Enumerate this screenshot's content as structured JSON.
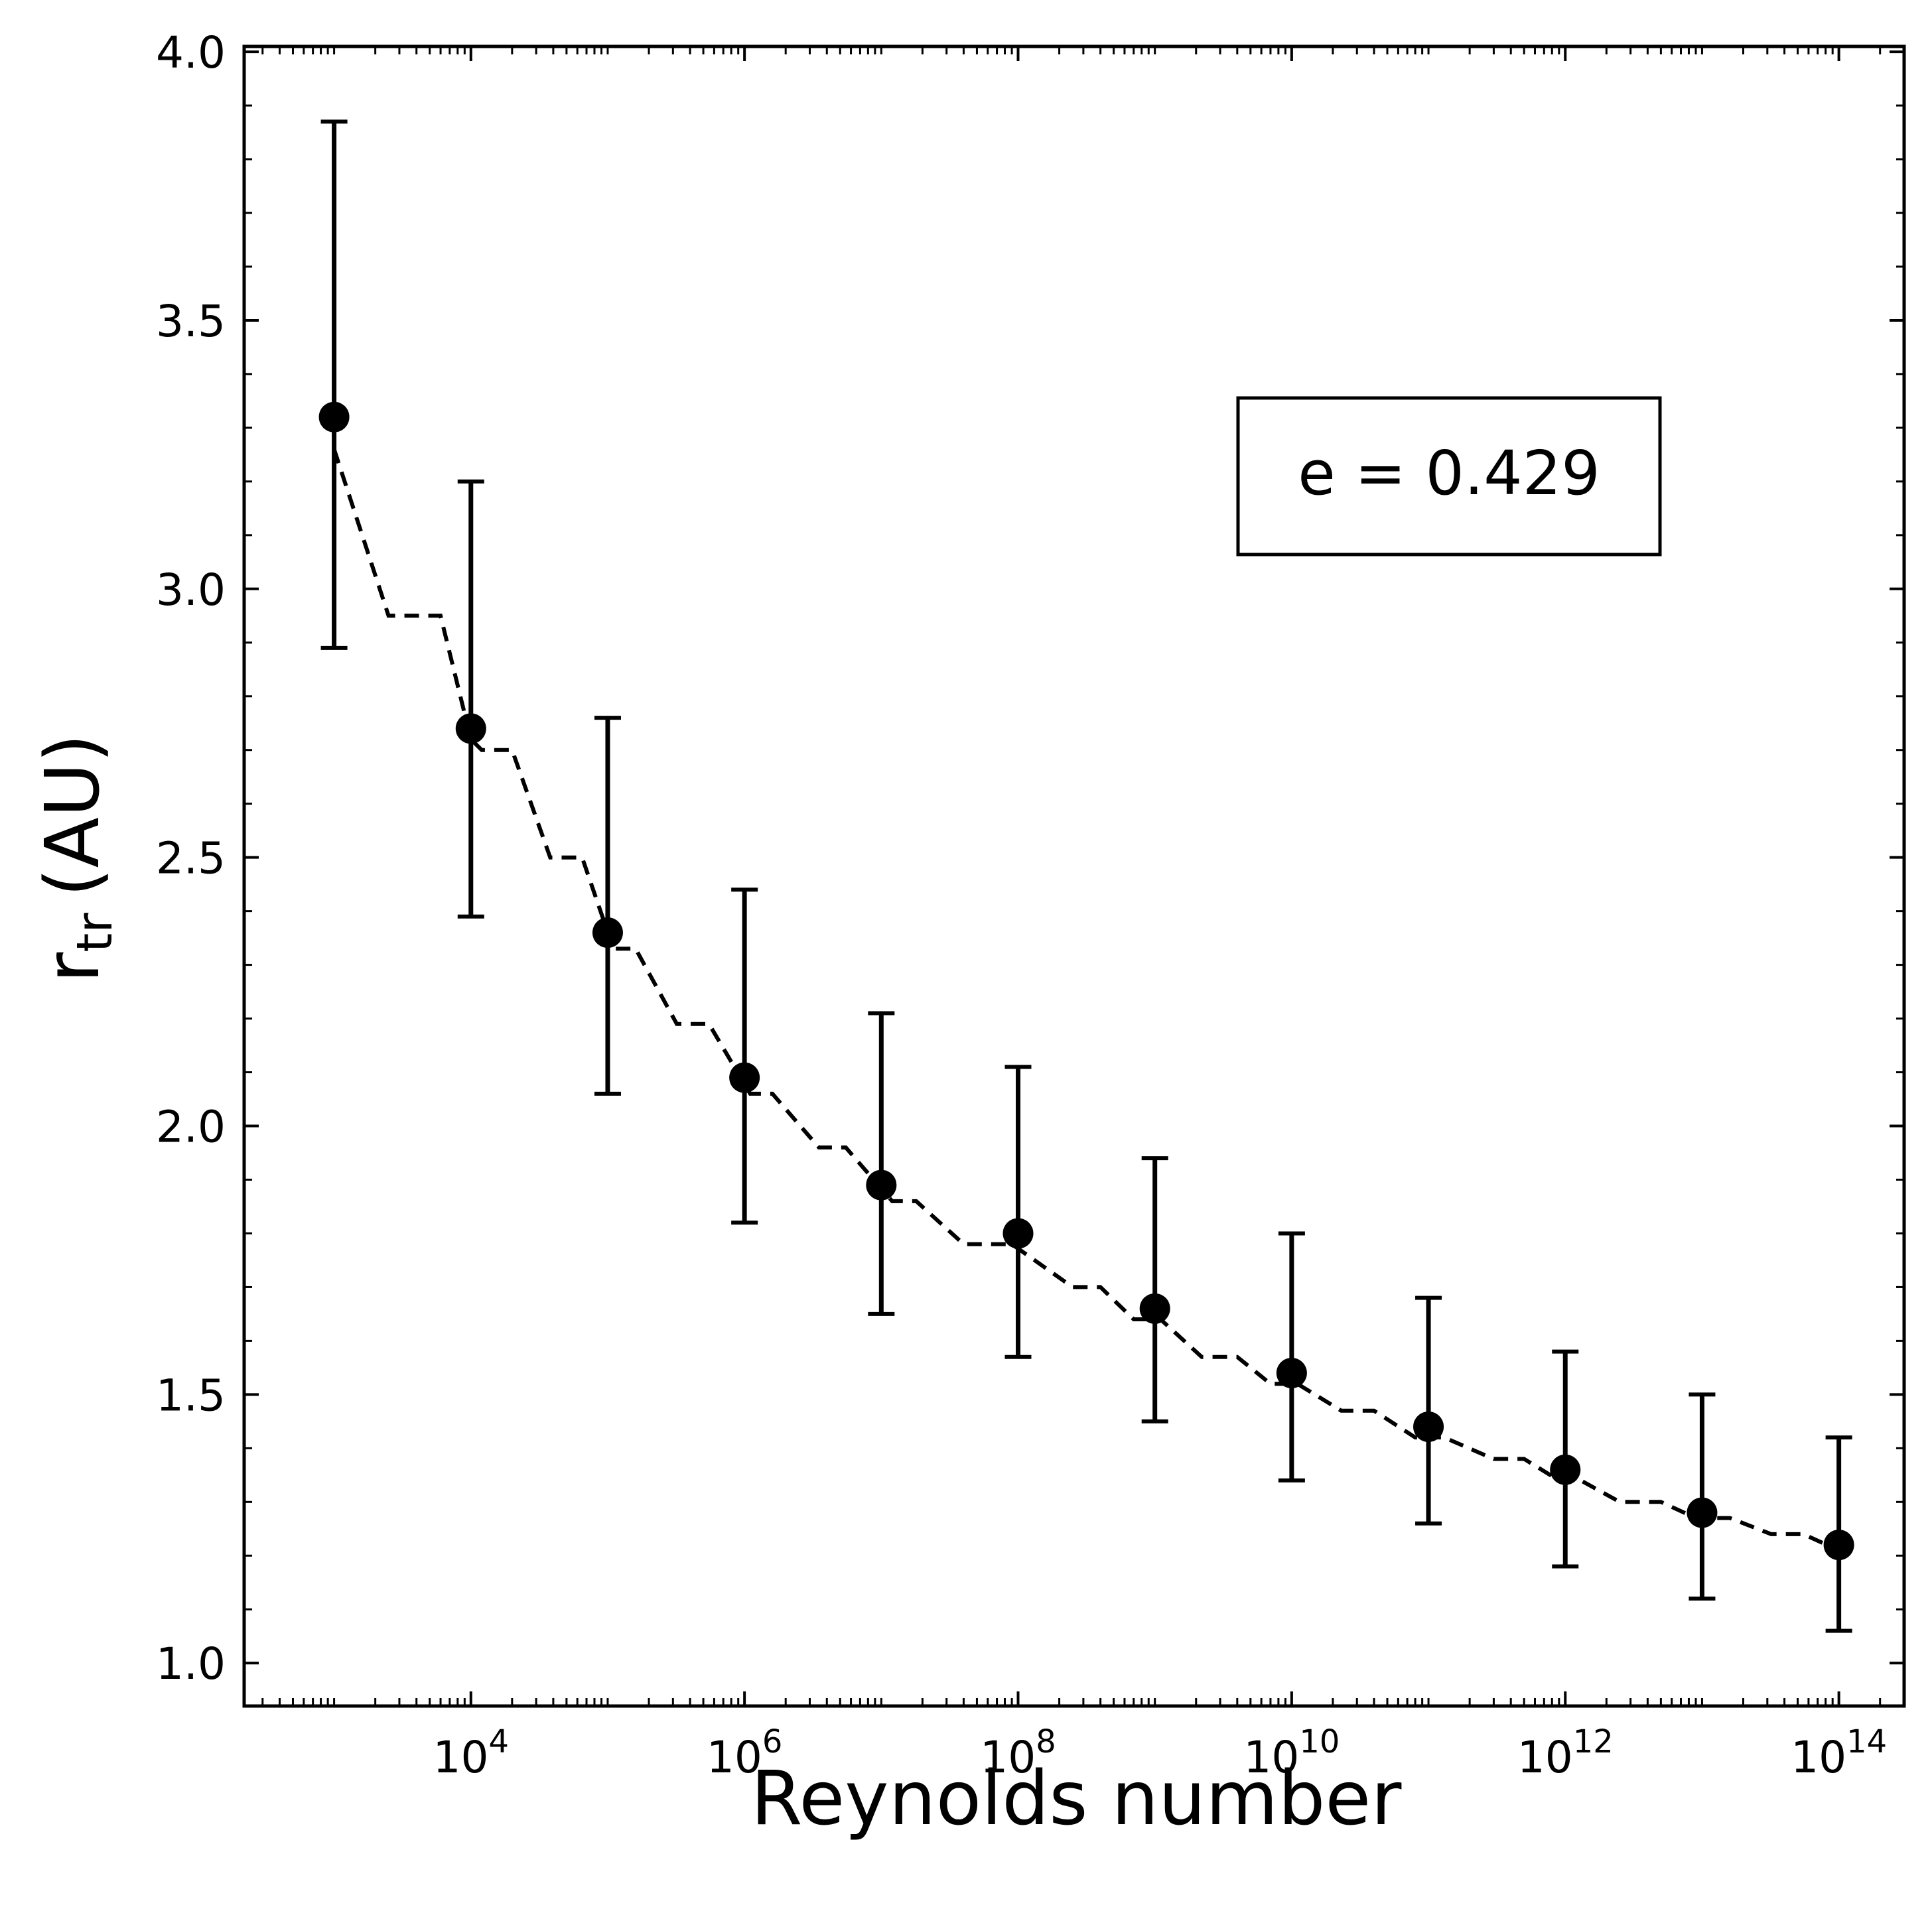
{
  "chart_data": {
    "type": "scatter",
    "title": "",
    "xlabel": "Reynolds number",
    "ylabel": {
      "main": "r",
      "sub": "tr",
      "unit": "(AU)"
    },
    "xscale": "log",
    "xlim": [
      220,
      300000000000000.0
    ],
    "ylim": [
      0.92,
      4.01
    ],
    "x_ticks": [
      {
        "value": 10000.0,
        "base": "10",
        "exp": "4"
      },
      {
        "value": 1000000.0,
        "base": "10",
        "exp": "6"
      },
      {
        "value": 100000000.0,
        "base": "10",
        "exp": "8"
      },
      {
        "value": 10000000000.0,
        "base": "10",
        "exp": "10"
      },
      {
        "value": 1000000000000.0,
        "base": "10",
        "exp": "12"
      },
      {
        "value": 100000000000000.0,
        "base": "10",
        "exp": "14"
      }
    ],
    "y_ticks": [
      {
        "value": 1.0,
        "label": "1.0"
      },
      {
        "value": 1.5,
        "label": "1.5"
      },
      {
        "value": 2.0,
        "label": "2.0"
      },
      {
        "value": 2.5,
        "label": "2.5"
      },
      {
        "value": 3.0,
        "label": "3.0"
      },
      {
        "value": 3.5,
        "label": "3.5"
      },
      {
        "value": 4.0,
        "label": "4.0"
      }
    ],
    "grid": false,
    "series": [
      {
        "marker": "circle",
        "color": "#000000",
        "points": [
          {
            "x": 1000.0,
            "y": 3.32,
            "ylow": 2.89,
            "yhigh": 3.87
          },
          {
            "x": 10000.0,
            "y": 2.74,
            "ylow": 2.39,
            "yhigh": 3.2
          },
          {
            "x": 100000.0,
            "y": 2.36,
            "ylow": 2.06,
            "yhigh": 2.76
          },
          {
            "x": 1000000.0,
            "y": 2.09,
            "ylow": 1.82,
            "yhigh": 2.44
          },
          {
            "x": 10000000.0,
            "y": 1.89,
            "ylow": 1.65,
            "yhigh": 2.21
          },
          {
            "x": 100000000.0,
            "y": 1.8,
            "ylow": 1.57,
            "yhigh": 2.11
          },
          {
            "x": 1000000000.0,
            "y": 1.66,
            "ylow": 1.45,
            "yhigh": 1.94
          },
          {
            "x": 10000000000.0,
            "y": 1.54,
            "ylow": 1.34,
            "yhigh": 1.8
          },
          {
            "x": 100000000000.0,
            "y": 1.44,
            "ylow": 1.26,
            "yhigh": 1.68
          },
          {
            "x": 1000000000000.0,
            "y": 1.36,
            "ylow": 1.18,
            "yhigh": 1.58
          },
          {
            "x": 10000000000000.0,
            "y": 1.28,
            "ylow": 1.12,
            "yhigh": 1.5
          },
          {
            "x": 100000000000000.0,
            "y": 1.22,
            "ylow": 1.06,
            "yhigh": 1.42
          }
        ]
      },
      {
        "type": "line",
        "style": "dashed",
        "color": "#000000",
        "points": [
          [
            1000.0,
            3.26
          ],
          [
            2500.0,
            2.95
          ],
          [
            6000.0,
            2.95
          ],
          [
            10000.0,
            2.72
          ],
          [
            12000.0,
            2.7
          ],
          [
            20000.0,
            2.7
          ],
          [
            38000.0,
            2.5
          ],
          [
            65000.0,
            2.5
          ],
          [
            110000.0,
            2.33
          ],
          [
            160000.0,
            2.33
          ],
          [
            320000.0,
            2.19
          ],
          [
            550000.0,
            2.19
          ],
          [
            1100000.0,
            2.06
          ],
          [
            1600000.0,
            2.06
          ],
          [
            3500000.0,
            1.96
          ],
          [
            5500000.0,
            1.96
          ],
          [
            12000000.0,
            1.86
          ],
          [
            18000000.0,
            1.86
          ],
          [
            40000000.0,
            1.78
          ],
          [
            90000000.0,
            1.78
          ],
          [
            250000000.0,
            1.7
          ],
          [
            400000000.0,
            1.7
          ],
          [
            700000000.0,
            1.64
          ],
          [
            1100000000.0,
            1.64
          ],
          [
            2200000000.0,
            1.57
          ],
          [
            4000000000.0,
            1.57
          ],
          [
            7000000000.0,
            1.52
          ],
          [
            11000000000.0,
            1.52
          ],
          [
            23000000000.0,
            1.47
          ],
          [
            40000000000.0,
            1.47
          ],
          [
            80000000000.0,
            1.42
          ],
          [
            130000000000.0,
            1.42
          ],
          [
            300000000000.0,
            1.38
          ],
          [
            500000000000.0,
            1.38
          ],
          [
            900000000000.0,
            1.34
          ],
          [
            1300000000000.0,
            1.34
          ],
          [
            2500000000000.0,
            1.3
          ],
          [
            5000000000000.0,
            1.3
          ],
          [
            9000000000000.0,
            1.27
          ],
          [
            16000000000000.0,
            1.27
          ],
          [
            32000000000000.0,
            1.24
          ],
          [
            55000000000000.0,
            1.24
          ],
          [
            100000000000000.0,
            1.21
          ]
        ]
      }
    ],
    "annotation": {
      "text": "e = 0.429",
      "position": "top-right"
    }
  }
}
